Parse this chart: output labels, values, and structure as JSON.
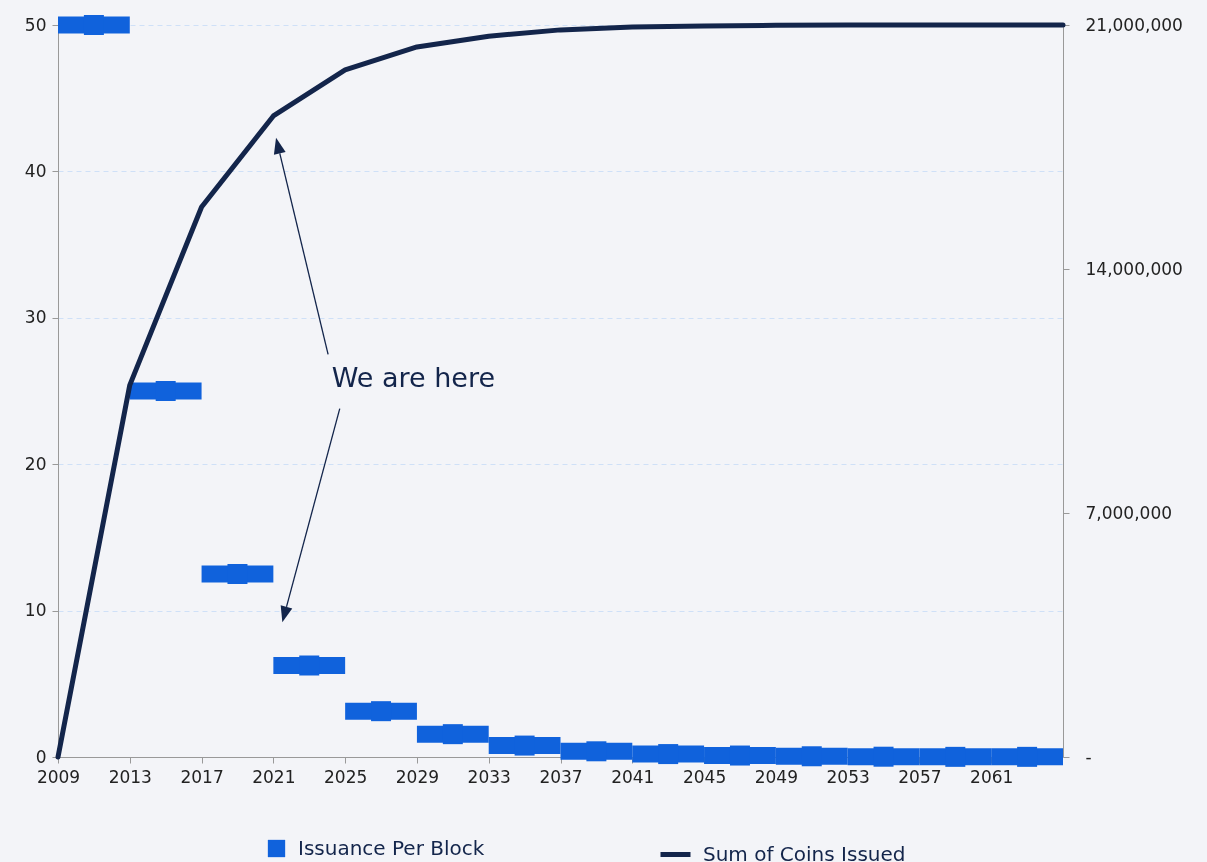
{
  "chart_data": {
    "type": "line",
    "xlim": [
      2009,
      2065
    ],
    "xticks": [
      2009,
      2013,
      2017,
      2021,
      2025,
      2029,
      2033,
      2037,
      2041,
      2045,
      2049,
      2053,
      2057,
      2061
    ],
    "ylim": [
      0,
      50
    ],
    "yticks": [
      0,
      10,
      20,
      30,
      40,
      50
    ],
    "y2lim": [
      0,
      21000000
    ],
    "y2ticks": [
      {
        "value": 0,
        "label": "-"
      },
      {
        "value": 7000000,
        "label": "7,000,000"
      },
      {
        "value": 14000000,
        "label": "14,000,000"
      },
      {
        "value": 21000000,
        "label": "21,000,000"
      }
    ],
    "grid": "y",
    "legend": "bottom",
    "annotations": [
      "We are here"
    ],
    "series": [
      {
        "name": "Issuance Per Block",
        "type": "scatter",
        "marker": "square",
        "color": "#1062dc",
        "x": [
          2011,
          2015,
          2019,
          2023,
          2027,
          2031,
          2035,
          2039,
          2043,
          2047,
          2051,
          2055,
          2059,
          2063
        ],
        "values": [
          50,
          25,
          12.5,
          6.25,
          3.13,
          1.56,
          0.78,
          0.39,
          0.2,
          0.1,
          0.05,
          0.02,
          0.01,
          0.01
        ],
        "xerrors": [
          2,
          2,
          2,
          2,
          2,
          2,
          2,
          2,
          2,
          2,
          2,
          2,
          2,
          2
        ]
      },
      {
        "name": "Sum of Coins Issued",
        "type": "line",
        "axis": "y2",
        "color": "#13254b",
        "x": [
          2009,
          2013,
          2017,
          2021,
          2025,
          2029,
          2033,
          2037,
          2041,
          2045,
          2049,
          2053,
          2057,
          2061,
          2065
        ],
        "values": [
          0,
          10670000,
          15780000,
          18390000,
          19710000,
          20370000,
          20680000,
          20860000,
          20940000,
          20970000,
          20990000,
          21000000,
          21000000,
          21000000,
          21000000
        ]
      }
    ]
  }
}
